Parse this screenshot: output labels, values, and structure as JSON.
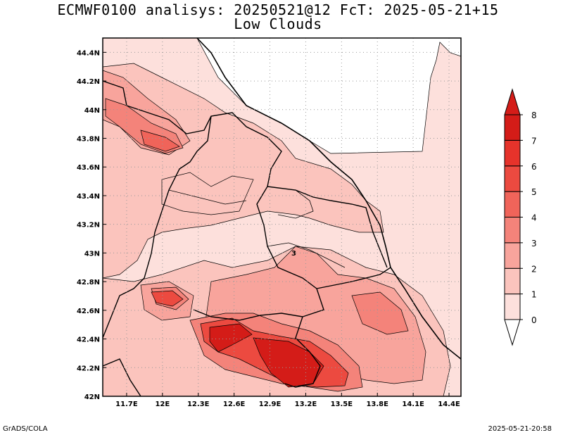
{
  "title": {
    "line1": "ECMWF0100 analisys: 20250521@12 FcT: 2025-05-21+15",
    "line2": "Low Clouds"
  },
  "footer": {
    "left": "GrADS/COLA",
    "right": "2025-05-21-20:58"
  },
  "map": {
    "lon_range": [
      11.5,
      14.5
    ],
    "lat_range": [
      42.0,
      44.5
    ],
    "grid": true,
    "x_ticks": [
      "11.7E",
      "12E",
      "12.3E",
      "12.6E",
      "12.9E",
      "13.2E",
      "13.5E",
      "13.8E",
      "14.1E",
      "14.4E"
    ],
    "y_ticks": [
      "44.4N",
      "44.2N",
      "44N",
      "43.8N",
      "43.6N",
      "43.4N",
      "43.2N",
      "43N",
      "42.8N",
      "42.6N",
      "42.4N",
      "42.2N",
      "42N"
    ],
    "contour_label": "3"
  },
  "colorbar": {
    "labels": [
      "0",
      "1",
      "2",
      "3",
      "4",
      "5",
      "6",
      "7",
      "8"
    ],
    "colors": [
      "#ffffff",
      "#fde0dc",
      "#fbc4bd",
      "#f8a49c",
      "#f4837a",
      "#f0645a",
      "#ec4a40",
      "#e6332b",
      "#d41c18"
    ]
  }
}
